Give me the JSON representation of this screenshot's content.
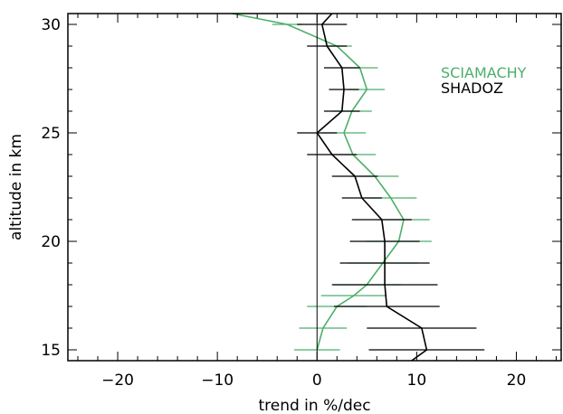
{
  "chart_data": {
    "type": "line",
    "xlabel": "trend in %/dec",
    "ylabel": "altitude in km",
    "xlim": [
      -25,
      24.5
    ],
    "ylim": [
      14.5,
      30.5
    ],
    "x_ticks": [
      -20,
      -10,
      0,
      10,
      20
    ],
    "y_ticks": [
      15,
      20,
      25,
      30
    ],
    "x_tick_labels": [
      "−20",
      "−10",
      "0",
      "10",
      "20"
    ],
    "y_tick_labels": [
      "15",
      "20",
      "25",
      "30"
    ],
    "legend_position": "top-right",
    "series": [
      {
        "name": "SCIAMACHY",
        "color": "#4caf6a",
        "points": [
          {
            "alt": 15.0,
            "trend": 0.0,
            "err": 2.3
          },
          {
            "alt": 16.0,
            "trend": 0.6,
            "err": 2.4
          },
          {
            "alt": 17.0,
            "trend": 2.0,
            "err": 3.0
          },
          {
            "alt": 17.5,
            "trend": 3.7,
            "err": 3.3
          },
          {
            "alt": 18.0,
            "trend": 5.0,
            "err": 3.4
          },
          {
            "alt": 19.0,
            "trend": 6.6,
            "err": 3.5
          },
          {
            "alt": 20.0,
            "trend": 8.2,
            "err": 3.3
          },
          {
            "alt": 21.0,
            "trend": 8.7,
            "err": 2.6
          },
          {
            "alt": 22.0,
            "trend": 7.4,
            "err": 2.6
          },
          {
            "alt": 23.0,
            "trend": 5.8,
            "err": 2.4
          },
          {
            "alt": 24.0,
            "trend": 3.6,
            "err": 2.3
          },
          {
            "alt": 25.0,
            "trend": 2.7,
            "err": 2.2
          },
          {
            "alt": 26.0,
            "trend": 3.5,
            "err": 2.0
          },
          {
            "alt": 27.0,
            "trend": 5.0,
            "err": 1.8
          },
          {
            "alt": 28.0,
            "trend": 4.3,
            "err": 1.8
          },
          {
            "alt": 29.0,
            "trend": 2.0,
            "err": 1.5
          },
          {
            "alt": 30.0,
            "trend": -3.0,
            "err": 1.5
          },
          {
            "alt": 30.5,
            "trend": -8.5,
            "err": 0
          }
        ]
      },
      {
        "name": "SHADOZ",
        "color": "#000000",
        "points": [
          {
            "alt": 14.5,
            "trend": 9.5,
            "err": 0
          },
          {
            "alt": 15.0,
            "trend": 11.0,
            "err": 5.8
          },
          {
            "alt": 16.0,
            "trend": 10.5,
            "err": 5.5
          },
          {
            "alt": 17.0,
            "trend": 7.0,
            "err": 5.3
          },
          {
            "alt": 18.0,
            "trend": 6.8,
            "err": 5.3
          },
          {
            "alt": 19.0,
            "trend": 6.8,
            "err": 4.5
          },
          {
            "alt": 20.0,
            "trend": 6.8,
            "err": 3.5
          },
          {
            "alt": 21.0,
            "trend": 6.5,
            "err": 3.0
          },
          {
            "alt": 22.0,
            "trend": 4.5,
            "err": 2.0
          },
          {
            "alt": 23.0,
            "trend": 3.8,
            "err": 2.3
          },
          {
            "alt": 24.0,
            "trend": 1.5,
            "err": 2.5
          },
          {
            "alt": 25.0,
            "trend": 0.0,
            "err": 2.0
          },
          {
            "alt": 26.0,
            "trend": 2.5,
            "err": 1.8
          },
          {
            "alt": 27.0,
            "trend": 2.7,
            "err": 1.5
          },
          {
            "alt": 28.0,
            "trend": 2.5,
            "err": 1.8
          },
          {
            "alt": 29.0,
            "trend": 1.0,
            "err": 2.0
          },
          {
            "alt": 30.0,
            "trend": 0.5,
            "err": 2.5
          },
          {
            "alt": 30.5,
            "trend": 1.5,
            "err": 0
          }
        ]
      }
    ]
  }
}
